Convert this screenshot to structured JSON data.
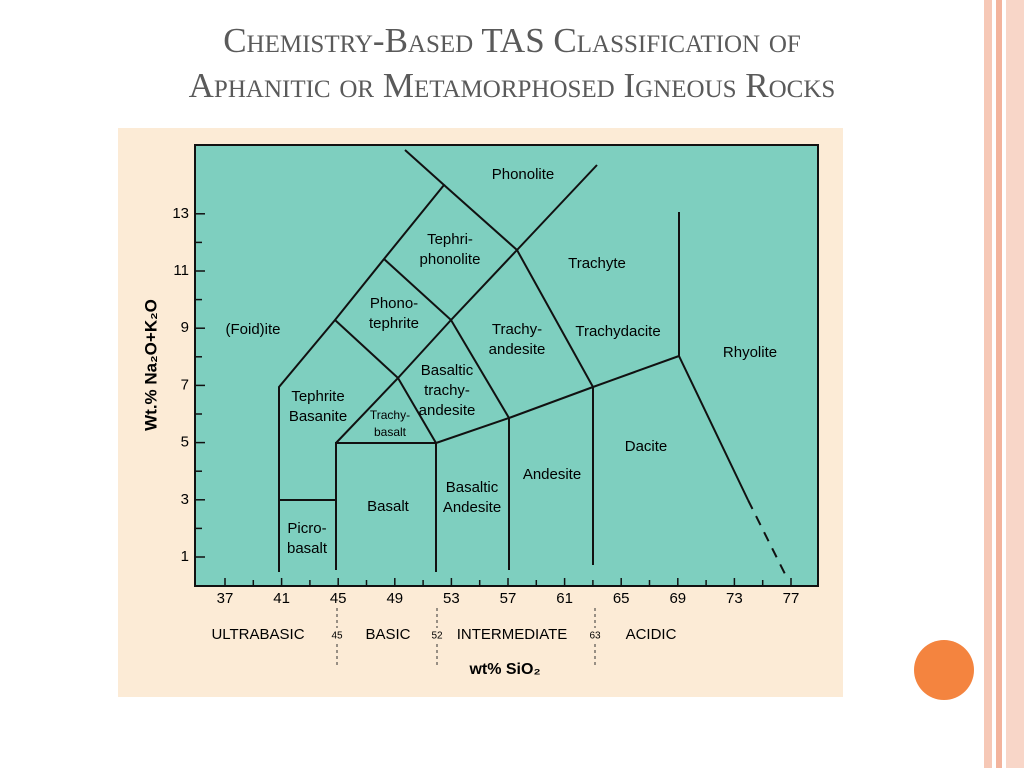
{
  "title": [
    "Chemistry-Based TAS Classification of",
    "Aphanitic or Metamorphosed Igneous Rocks"
  ],
  "diagram": {
    "x_axis": {
      "title": "wt% SiO₂",
      "ticks": [
        37,
        41,
        45,
        49,
        53,
        57,
        61,
        65,
        69,
        73,
        77
      ]
    },
    "y_axis": {
      "title": "Wt.% Na₂O+K₂O",
      "ticks": [
        1,
        3,
        5,
        7,
        9,
        11,
        13
      ]
    },
    "fields": [
      {
        "lines": [
          "Phonolite"
        ]
      },
      {
        "lines": [
          "Tephri-",
          "phonolite"
        ]
      },
      {
        "lines": [
          "Trachyte"
        ]
      },
      {
        "lines": [
          "(Foid)ite"
        ]
      },
      {
        "lines": [
          "Phono-",
          "tephrite"
        ]
      },
      {
        "lines": [
          "Trachy-",
          "andesite"
        ]
      },
      {
        "lines": [
          "Trachydacite"
        ]
      },
      {
        "lines": [
          "Rhyolite"
        ]
      },
      {
        "lines": [
          "Basaltic",
          "trachy-",
          "andesite"
        ]
      },
      {
        "lines": [
          "Tephrite",
          "Basanite"
        ]
      },
      {
        "lines": [
          "Trachy-",
          "basalt"
        ]
      },
      {
        "lines": [
          "Dacite"
        ]
      },
      {
        "lines": [
          "Andesite"
        ]
      },
      {
        "lines": [
          "Basaltic",
          "Andesite"
        ]
      },
      {
        "lines": [
          "Basalt"
        ]
      },
      {
        "lines": [
          "Picro-",
          "basalt"
        ]
      }
    ],
    "classes": [
      "ULTRABASIC",
      "BASIC",
      "INTERMEDIATE",
      "ACIDIC"
    ],
    "class_boundaries": [
      45,
      52,
      63
    ]
  }
}
